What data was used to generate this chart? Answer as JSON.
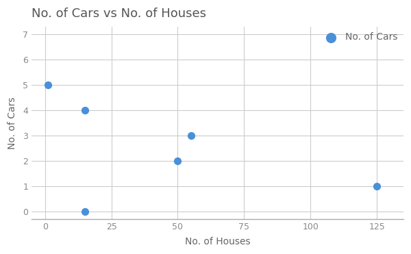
{
  "title": "No. of Cars vs No. of Houses",
  "xlabel": "No. of Houses",
  "ylabel": "No. of Cars",
  "x": [
    1,
    15,
    15,
    50,
    55,
    125
  ],
  "y": [
    5,
    4,
    0,
    2,
    3,
    1
  ],
  "dot_color": "#4A90D9",
  "dot_size": 50,
  "legend_label": "No. of Cars",
  "xlim": [
    -5,
    135
  ],
  "ylim": [
    -0.3,
    7.3
  ],
  "xticks": [
    0,
    25,
    50,
    75,
    100,
    125
  ],
  "yticks": [
    0,
    1,
    2,
    3,
    4,
    5,
    6,
    7
  ],
  "title_fontsize": 13,
  "label_fontsize": 10,
  "tick_fontsize": 9,
  "legend_fontsize": 10,
  "grid_color": "#cccccc",
  "background_color": "#ffffff",
  "title_color": "#555555",
  "axis_label_color": "#666666",
  "tick_color": "#888888"
}
